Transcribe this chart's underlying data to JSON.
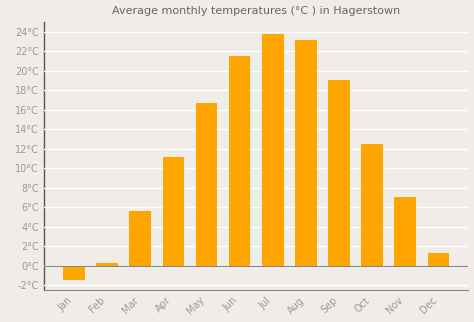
{
  "title": "Average monthly temperatures (°C ) in Hagerstown",
  "months": [
    "Jan",
    "Feb",
    "Mar",
    "Apr",
    "May",
    "Jun",
    "Jul",
    "Aug",
    "Sep",
    "Oct",
    "Nov",
    "Dec"
  ],
  "values": [
    -1.5,
    0.3,
    5.6,
    11.2,
    16.7,
    21.5,
    23.8,
    23.1,
    19.0,
    12.5,
    7.1,
    1.3
  ],
  "bar_color": "#FFA500",
  "ylim": [
    -2.5,
    25
  ],
  "yticks": [
    -2,
    0,
    2,
    4,
    6,
    8,
    10,
    12,
    14,
    16,
    18,
    20,
    22,
    24
  ],
  "background_color": "#f0ede8",
  "plot_bg_color": "#f0ede8",
  "grid_color": "#ffffff",
  "tick_label_color": "#999999",
  "title_color": "#666666",
  "title_fontsize": 8,
  "tick_fontsize": 7,
  "bar_width": 0.65
}
